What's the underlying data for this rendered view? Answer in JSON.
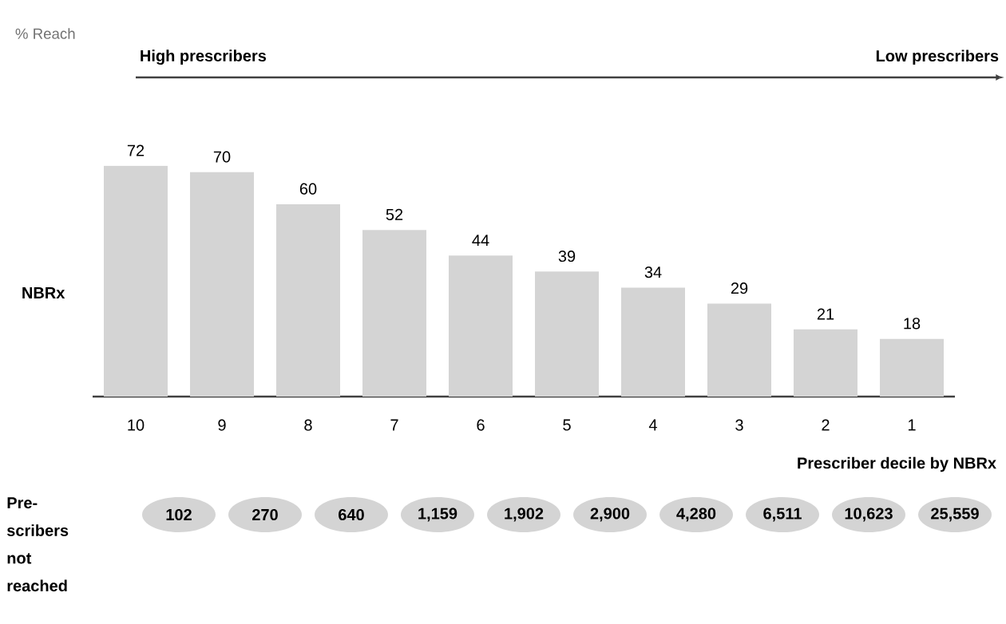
{
  "chart_data": {
    "type": "bar",
    "title": "% Reach",
    "xlabel": "Prescriber decile by NBRx",
    "categories": [
      "10",
      "9",
      "8",
      "7",
      "6",
      "5",
      "4",
      "3",
      "2",
      "1"
    ],
    "values": [
      72,
      70,
      60,
      52,
      44,
      39,
      34,
      29,
      21,
      18
    ],
    "color": "#d4d4d4",
    "data_labels": true,
    "annotations": [
      "High prescribers",
      "Low prescribers",
      "NBRx",
      "Pre-scribers not reached",
      "102",
      "270",
      "640",
      "1,159",
      "1,902",
      "2,900",
      "4,280",
      "6,511",
      "10,623",
      "25,559"
    ]
  }
}
